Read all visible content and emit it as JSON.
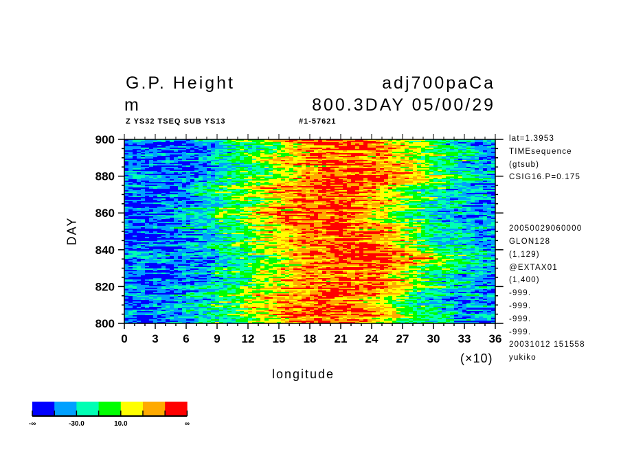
{
  "header": {
    "title_left": "G.P. Height",
    "title_right": "adj700paCa",
    "unit": "m",
    "time_label": "800.3DAY 05/00/29",
    "sub_left": "Z YS32 TSEQ SUB YS13",
    "sub_right": "#1-57621"
  },
  "info_lines": [
    "lat=1.3953",
    "TIMEsequence",
    "(gtsub)",
    "CSIG16.P=0.175",
    "20050029060000",
    "GLON128",
    "(1,129)",
    "@EXTAX01",
    "(1,400)",
    "-999.",
    "-999.",
    "-999.",
    "-999.",
    "20031012 151558",
    "yukiko"
  ],
  "chart_data": {
    "type": "heatmap",
    "xlabel": "longitude",
    "x_multiplier_label": "(×10)",
    "ylabel": "DAY",
    "xlim": [
      0,
      36
    ],
    "ylim": [
      800,
      900
    ],
    "x_ticks": [
      "0",
      "3",
      "6",
      "9",
      "12",
      "15",
      "18",
      "21",
      "24",
      "27",
      "30",
      "33",
      "36"
    ],
    "y_ticks": [
      "800",
      "820",
      "840",
      "860",
      "880",
      "900"
    ],
    "approx_profile": {
      "x": [
        0,
        3,
        6,
        9,
        12,
        15,
        18,
        21,
        24,
        27,
        30,
        33,
        36
      ],
      "value": [
        -45,
        -50,
        -42,
        -22,
        0,
        28,
        48,
        55,
        45,
        18,
        -12,
        -30,
        -40
      ]
    },
    "colorbar": {
      "colors": [
        "#0000ff",
        "#00a0ff",
        "#00ffb4",
        "#00ff00",
        "#ffff00",
        "#ffaa00",
        "#ff0000"
      ],
      "labels": [
        "-∞",
        "-30.0",
        "10.0",
        "∞"
      ]
    }
  }
}
